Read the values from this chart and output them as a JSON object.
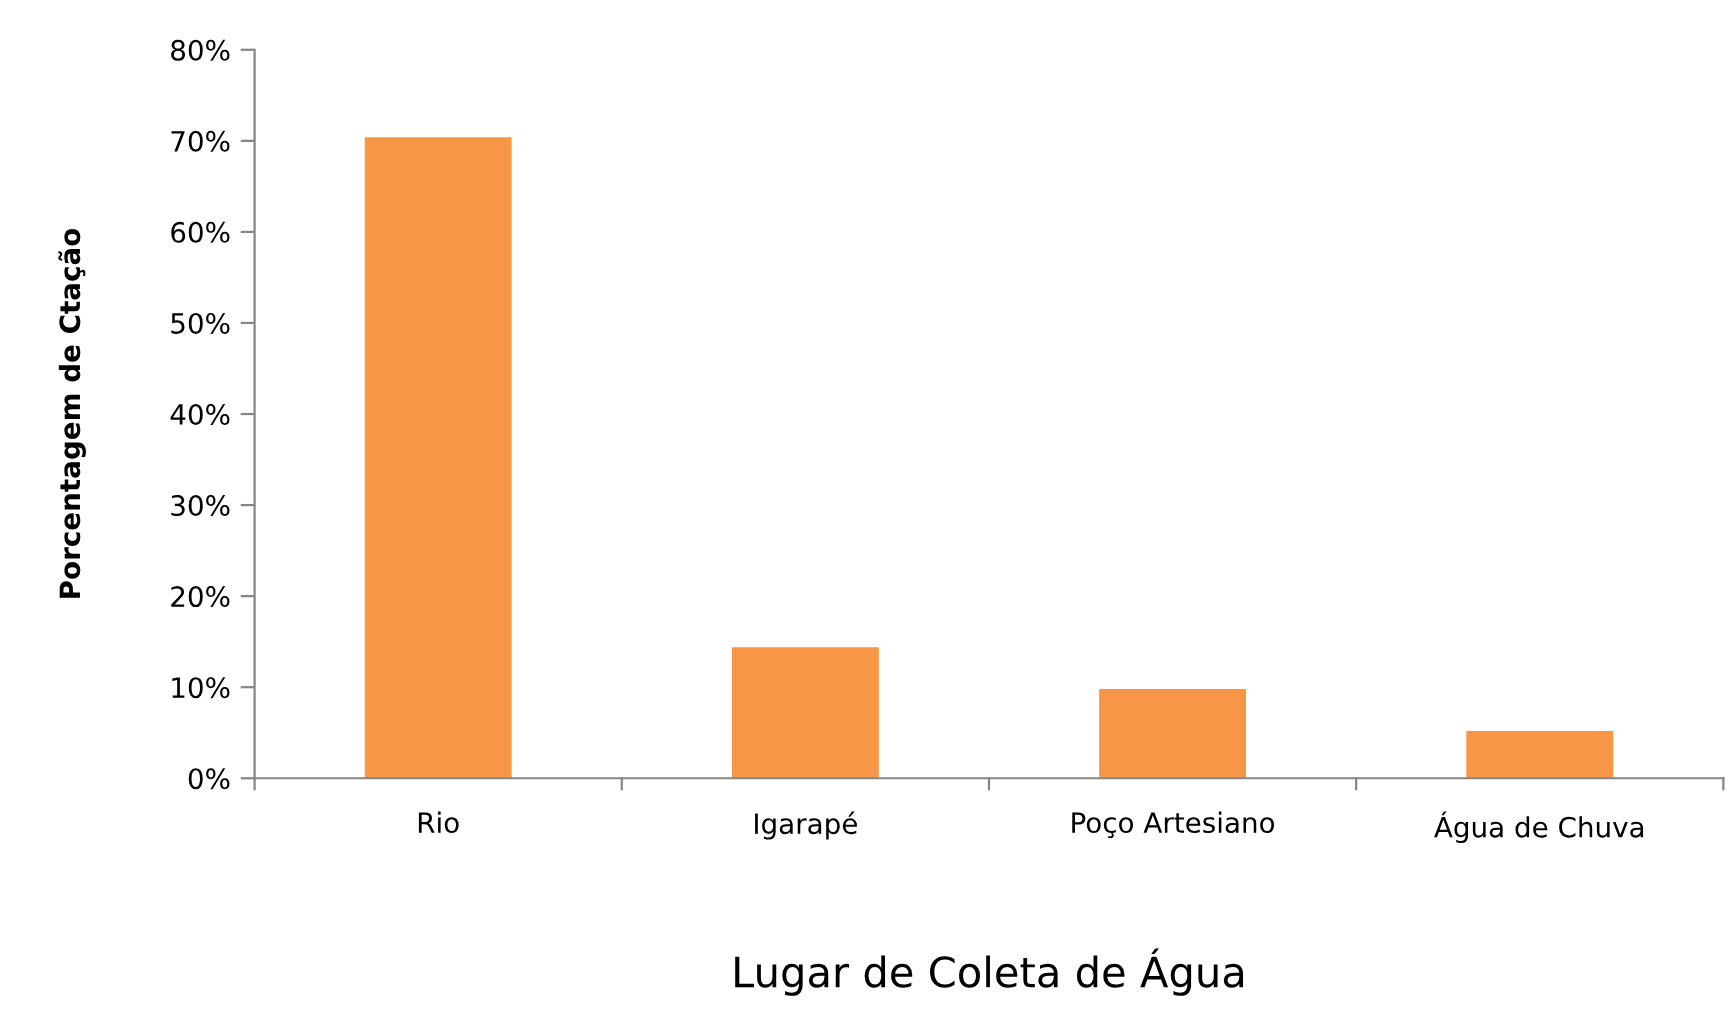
{
  "chart_data": {
    "type": "bar",
    "xlabel": "Lugar de Coleta de Água",
    "ylabel": "Porcentagem de Ctação",
    "categories": [
      "Rio",
      "Igarapé",
      "Poço Artesiano",
      "Água de Chuva"
    ],
    "values": [
      70.4,
      14.4,
      9.8,
      5.2
    ],
    "color": "#f79646",
    "ylim": [
      0,
      80
    ],
    "yticks": [
      {
        "value": 0,
        "label": "0%"
      },
      {
        "value": 10,
        "label": "10%"
      },
      {
        "value": 20,
        "label": "20%"
      },
      {
        "value": 30,
        "label": "30%"
      },
      {
        "value": 40,
        "label": "40%"
      },
      {
        "value": 50,
        "label": "50%"
      },
      {
        "value": 60,
        "label": "60%"
      },
      {
        "value": 70,
        "label": "70%"
      },
      {
        "value": 80,
        "label": "80%"
      }
    ],
    "grid": false,
    "legend": false
  }
}
